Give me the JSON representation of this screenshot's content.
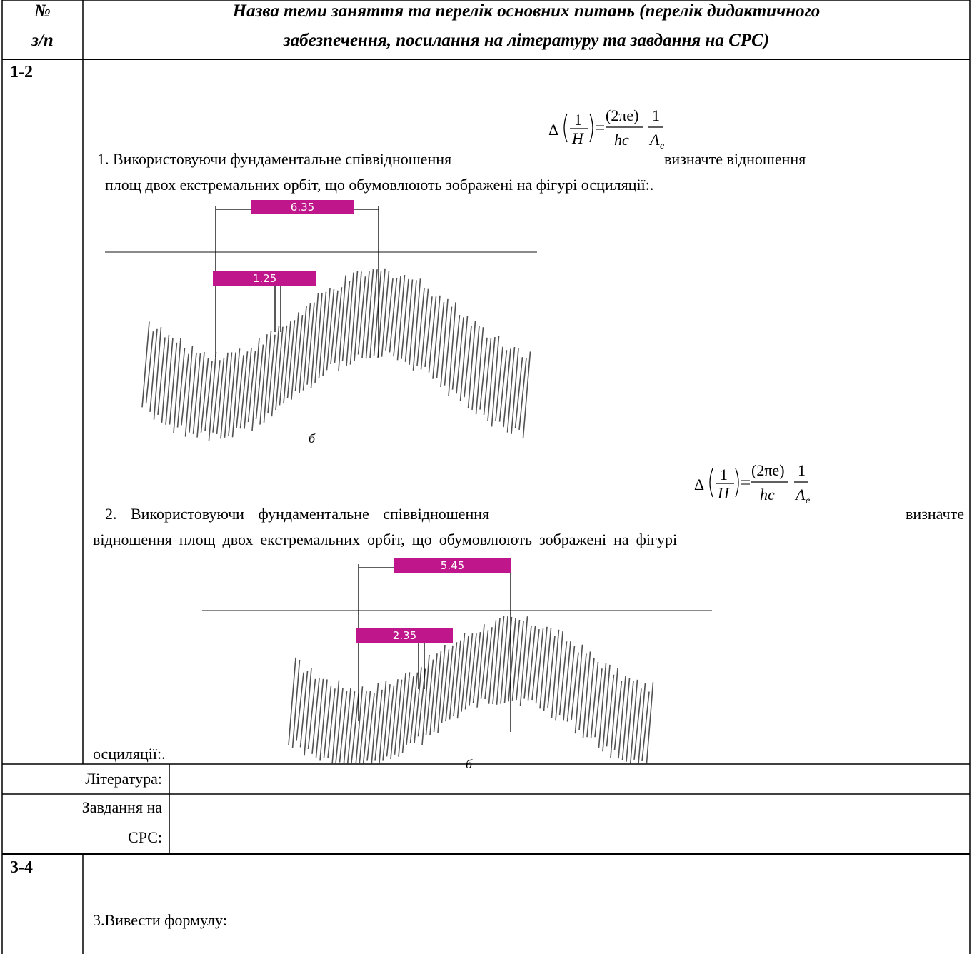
{
  "header": {
    "num_line1": "№",
    "num_line2": "з/п",
    "title_line1": "Назва теми заняття та перелік основних питань (перелік дидактичного",
    "title_line2": "забезпечення, посилання на літературу та завдання на СРС)"
  },
  "formula": {
    "delta": "Δ",
    "num1": "1",
    "den1": "H",
    "num2": "(2πe)",
    "den2": "ħc",
    "num3": "1",
    "den3": "A",
    "sub": "e"
  },
  "rows": [
    {
      "number": "1-2",
      "tasks": [
        {
          "line1": "1. Використовуючи фундаментальне співвідношення",
          "after": "визначте відношення",
          "line2": "площ двох екстремальних орбіт, що обумовлюють зображені на фігурі осциляції:.",
          "figure": {
            "wide_label": "6.35",
            "narrow_label": "1.25",
            "mark": "б"
          }
        },
        {
          "line1": "2.   Використовуючи   фундаментальне   співвідношення",
          "after": "визначте",
          "line2": "відношення площ двох екстремальних орбіт, що обумовлюють зображені на фігурі",
          "tail": "осциляції:.",
          "figure": {
            "wide_label": "5.45",
            "narrow_label": "2.35",
            "mark": "б"
          }
        }
      ],
      "literature": "Література:",
      "srs_line1": "Завдання на",
      "srs_line2": "СРС:"
    },
    {
      "number": "3-4",
      "tasks": [
        {
          "line1": "3.Вивести формулу:"
        }
      ]
    }
  ]
}
